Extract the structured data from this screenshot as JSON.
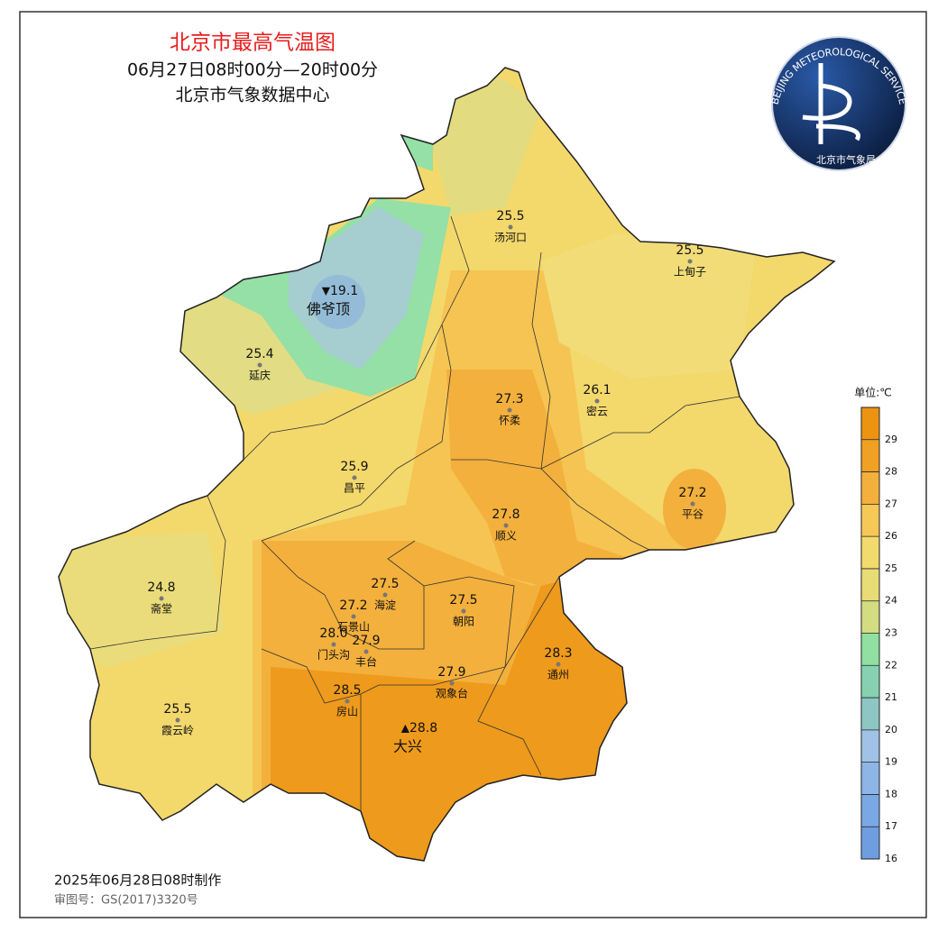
{
  "header": {
    "title": "北京市最高气温图",
    "subtitle": "06月27日08时00分—20时00分",
    "source": "北京市气象数据中心"
  },
  "logo": {
    "ring_text": "BEIJING METEOROLOGICAL SERVICE",
    "agency": "北京市气象局"
  },
  "stations": [
    {
      "name": "汤河口",
      "value": 25.5
    },
    {
      "name": "上甸子",
      "value": 25.5
    },
    {
      "name": "佛爷顶",
      "value": 19.1,
      "symbol": "▼"
    },
    {
      "name": "延庆",
      "value": 25.4
    },
    {
      "name": "怀柔",
      "value": 27.3
    },
    {
      "name": "密云",
      "value": 26.1
    },
    {
      "name": "昌平",
      "value": 25.9
    },
    {
      "name": "平谷",
      "value": 27.2
    },
    {
      "name": "顺义",
      "value": 27.8
    },
    {
      "name": "海淀",
      "value": 27.5
    },
    {
      "name": "斋堂",
      "value": 24.8
    },
    {
      "name": "石景山",
      "value": 27.2
    },
    {
      "name": "朝阳",
      "value": 27.5
    },
    {
      "name": "门头沟",
      "value": 28,
      "value_label": "28.0"
    },
    {
      "name": "丰台",
      "value": 27.9
    },
    {
      "name": "通州",
      "value": 28.3
    },
    {
      "name": "观象台",
      "value": 27.9
    },
    {
      "name": "房山",
      "value": 28.5
    },
    {
      "name": "霞云岭",
      "value": 25.5
    },
    {
      "name": "大兴",
      "value": 28.8,
      "symbol": "▲"
    }
  ],
  "legend": {
    "title": "单位:℃",
    "range": [
      16,
      30
    ],
    "ticks": [
      16,
      17,
      18,
      19,
      20,
      21,
      22,
      23,
      24,
      25,
      26,
      27,
      28,
      29
    ],
    "colors": [
      "#6e9ee0",
      "#7aa8e4",
      "#8db5e6",
      "#a0c2e6",
      "#8ec6c4",
      "#86d2b0",
      "#90e0a2",
      "#d4dc82",
      "#e8dc76",
      "#f3da6c",
      "#f6c856",
      "#f3b03c",
      "#f0a022",
      "#ec9410"
    ]
  },
  "footer": {
    "made": "2025年06月28日08时制作",
    "approval": "审图号：GS(2017)3320号"
  }
}
